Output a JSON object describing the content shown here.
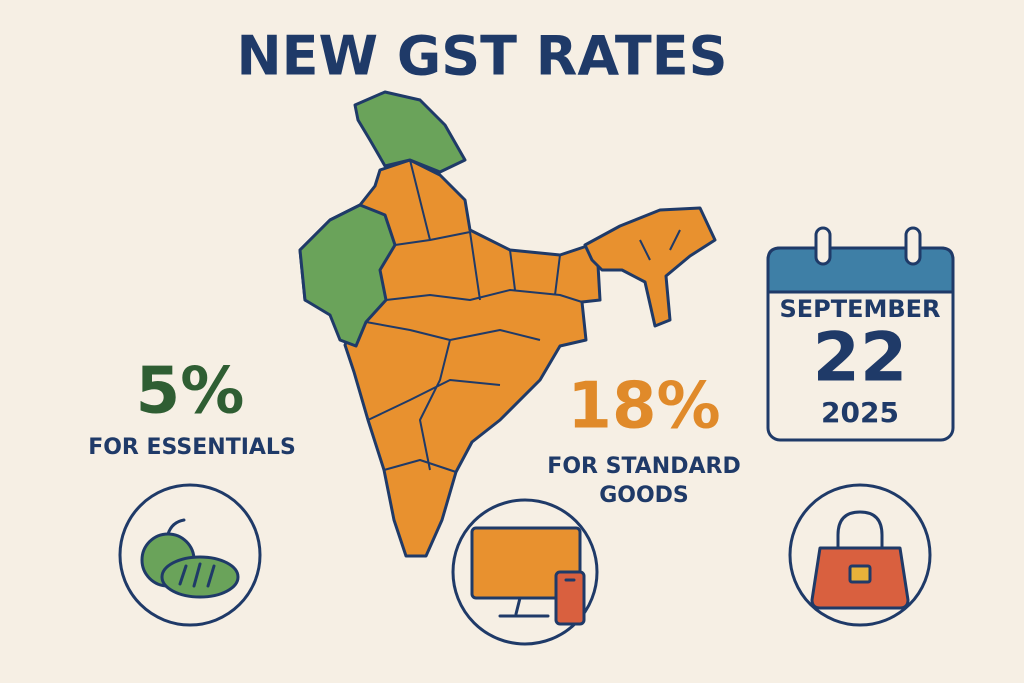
{
  "title": "NEW GST RATES",
  "rates": [
    {
      "rate": "5%",
      "label_lines": [
        "FOR ESSENTIALS"
      ]
    },
    {
      "rate": "18%",
      "label_lines": [
        "FOR STANDARD",
        "GOODS"
      ]
    }
  ],
  "date": {
    "month": "SEPTEMBER",
    "day": "22",
    "year": "2025"
  }
}
